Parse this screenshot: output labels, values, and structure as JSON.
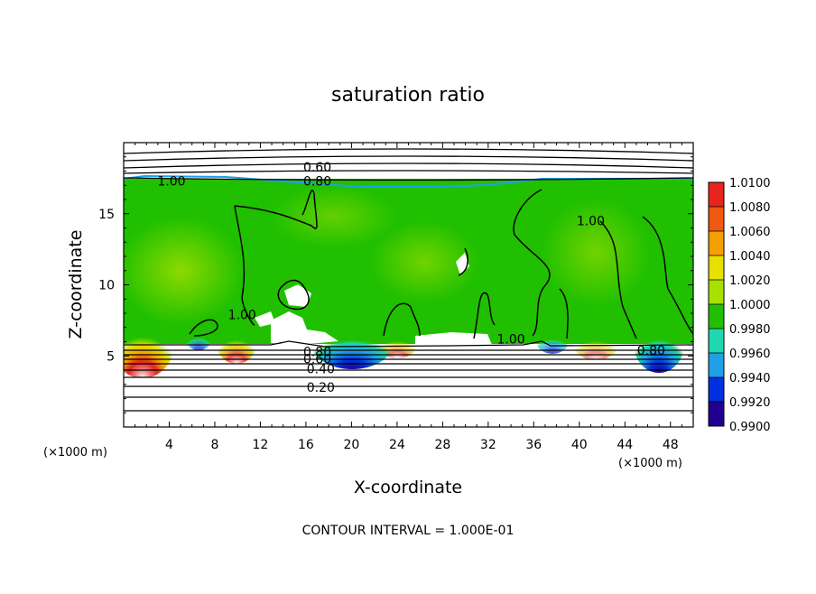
{
  "chart_data": {
    "type": "heatmap",
    "title": "saturation ratio",
    "xlabel": "X-coordinate",
    "ylabel": "Z-coordinate",
    "x_unit": "(×1000 m)",
    "y_unit": "(×1000 m)",
    "xlim": [
      0,
      50
    ],
    "ylim": [
      0,
      20
    ],
    "x_ticks": [
      4,
      8,
      12,
      16,
      20,
      24,
      28,
      32,
      36,
      40,
      44,
      48
    ],
    "y_ticks": [
      5,
      10,
      15
    ],
    "colorbar": {
      "levels": [
        "1.0100",
        "1.0080",
        "1.0060",
        "1.0040",
        "1.0020",
        "1.0000",
        "0.9980",
        "0.9960",
        "0.9940",
        "0.9920",
        "0.9900"
      ],
      "colors": [
        "#f08080",
        "#e8241c",
        "#f05a10",
        "#f5a000",
        "#e8e000",
        "#a8e000",
        "#20c000",
        "#20d8b0",
        "#20a0e8",
        "#0030e0",
        "#200090",
        "#600080"
      ]
    },
    "contour_labels": [
      {
        "text": "0.60",
        "x": 17.0,
        "y": 18.3
      },
      {
        "text": "0.80",
        "x": 17.0,
        "y": 17.3
      },
      {
        "text": "1.00",
        "x": 4.2,
        "y": 17.3
      },
      {
        "text": "1.00",
        "x": 41.0,
        "y": 14.5
      },
      {
        "text": "1.00",
        "x": 10.4,
        "y": 7.9
      },
      {
        "text": "1.00",
        "x": 34.0,
        "y": 6.2
      },
      {
        "text": "0.80",
        "x": 46.3,
        "y": 5.4
      },
      {
        "text": "0.80",
        "x": 17.0,
        "y": 5.3
      },
      {
        "text": "0.60",
        "x": 17.0,
        "y": 4.8
      },
      {
        "text": "0.40",
        "x": 17.3,
        "y": 4.1
      },
      {
        "text": "0.20",
        "x": 17.3,
        "y": 2.8
      }
    ],
    "contour_interval_note": "CONTOUR INTERVAL = 1.000E-01"
  }
}
